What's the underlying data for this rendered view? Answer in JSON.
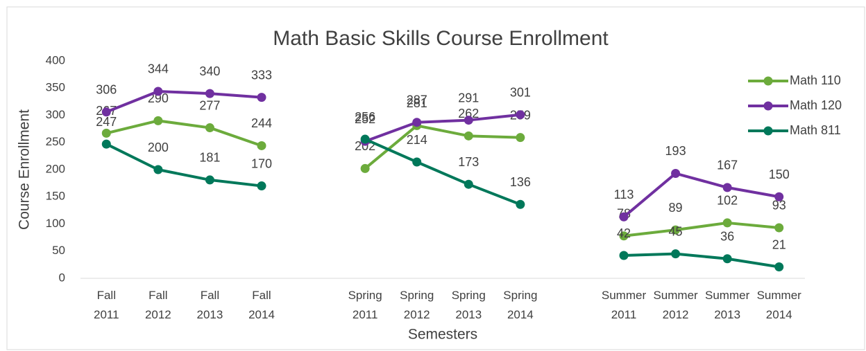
{
  "chart_data": {
    "type": "line",
    "title": "Math Basic Skills Course Enrollment",
    "x_label": "Semesters",
    "y_label": "Course Enrollment",
    "categories": [
      "Fall 2011",
      "Fall 2012",
      "Fall 2013",
      "Fall 2014",
      null,
      "Spring 2011",
      "Spring 2012",
      "Spring 2013",
      "Spring 2014",
      null,
      "Summer 2011",
      "Summer 2012",
      "Summer 2013",
      "Summer 2014"
    ],
    "series": [
      {
        "name": "Math 110",
        "color": "#6cab3c",
        "values": [
          267,
          290,
          277,
          244,
          null,
          202,
          281,
          262,
          259,
          null,
          78,
          89,
          102,
          93
        ]
      },
      {
        "name": "Math 120",
        "color": "#7030a0",
        "values": [
          306,
          344,
          340,
          333,
          null,
          252,
          287,
          291,
          301,
          null,
          113,
          193,
          167,
          150
        ]
      },
      {
        "name": "Math 811",
        "color": "#00785a",
        "values": [
          247,
          200,
          181,
          170,
          null,
          256,
          214,
          173,
          136,
          null,
          42,
          45,
          36,
          21
        ]
      }
    ],
    "ylim": [
      0,
      400
    ],
    "yticks": [
      0,
      50,
      100,
      150,
      200,
      250,
      300,
      350,
      400
    ],
    "grid": false,
    "legend": "right"
  }
}
